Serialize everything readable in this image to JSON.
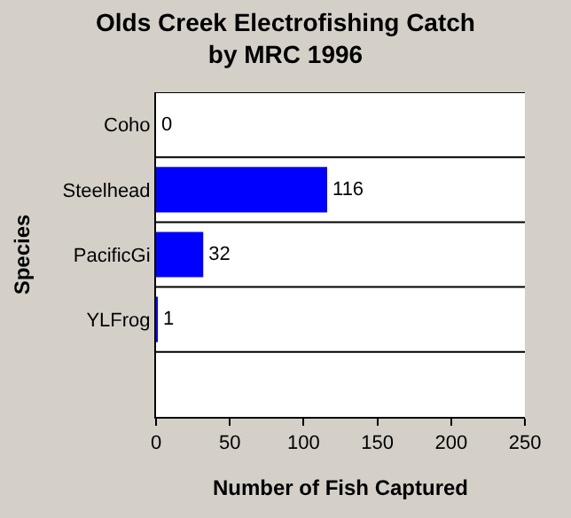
{
  "chart_data": {
    "type": "bar",
    "title": "Olds Creek Electrofishing Catch\nby MRC 1996",
    "orientation": "horizontal",
    "categories": [
      "Coho",
      "Steelhead",
      "PacificGi",
      "YLFrog",
      null
    ],
    "values": [
      0,
      116,
      32,
      1,
      null
    ],
    "color": "#0000ff",
    "xlim": [
      0,
      250
    ],
    "xticks": [
      0,
      50,
      100,
      150,
      200,
      250
    ],
    "xlabel": "Number of Fish Captured",
    "ylabel": "Species",
    "data_labels": true,
    "grid": "y",
    "legend": false
  }
}
